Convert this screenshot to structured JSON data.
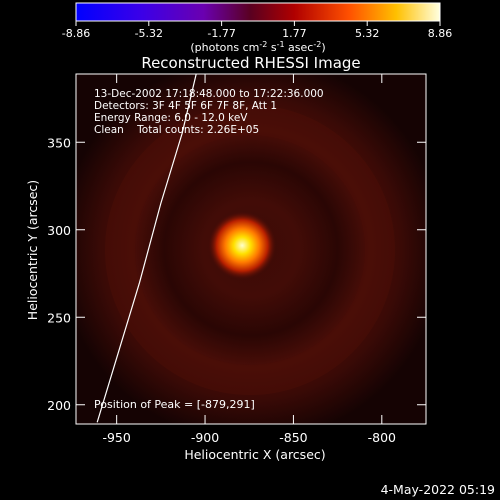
{
  "chart_data": {
    "type": "heatmap",
    "title": "Reconstructed RHESSI Image",
    "xlabel": "Heliocentric X (arcsec)",
    "ylabel": "Heliocentric Y (arcsec)",
    "xlim": [
      -973,
      -775
    ],
    "ylim": [
      189,
      389
    ],
    "x_ticks": [
      -950,
      -900,
      -850,
      -800
    ],
    "y_ticks": [
      200,
      250,
      300,
      350
    ],
    "colorbar": {
      "ticks": [
        "-8.86",
        "-5.32",
        "-1.77",
        "1.77",
        "5.32",
        "8.86"
      ],
      "range": [
        -8.86,
        8.86
      ],
      "unit_label": "(photons cm",
      "unit_exp1": "-2",
      "unit_mid": " s",
      "unit_exp2": "-1",
      "unit_mid2": " asec",
      "unit_exp3": "-2",
      "unit_end": ")"
    },
    "annotations": [
      "13-Dec-2002 17:18:48.000 to 17:22:36.000",
      "Detectors: 3F 4F 5F 6F 7F 8F, Att 1",
      "Energy Range: 6.0 - 12.0 keV",
      "Clean    Total counts: 2.26E+05"
    ],
    "peak_label": "Position of Peak = [-879,291]",
    "peak": [
      -879,
      291
    ],
    "limb_points": [
      [
        -961,
        190
      ],
      [
        -949,
        230
      ],
      [
        -937,
        270
      ],
      [
        -925,
        315
      ],
      [
        -913,
        355
      ],
      [
        -905,
        389
      ]
    ]
  },
  "footer": {
    "date": "4-May-2022 05:19"
  }
}
